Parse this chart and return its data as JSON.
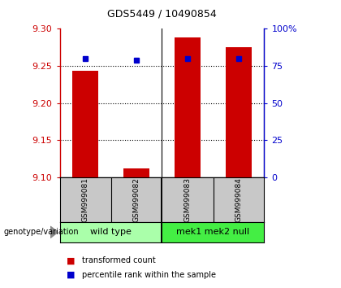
{
  "title": "GDS5449 / 10490854",
  "samples": [
    "GSM999081",
    "GSM999082",
    "GSM999083",
    "GSM999084"
  ],
  "bar_bottoms": [
    9.1,
    9.1,
    9.1,
    9.1
  ],
  "bar_tops": [
    9.243,
    9.112,
    9.288,
    9.275
  ],
  "percentile_pcts": [
    80,
    79,
    80,
    80
  ],
  "ylim_left": [
    9.1,
    9.3
  ],
  "ylim_right": [
    0,
    100
  ],
  "yticks_left": [
    9.1,
    9.15,
    9.2,
    9.25,
    9.3
  ],
  "yticks_right": [
    0,
    25,
    50,
    75,
    100
  ],
  "ytick_labels_right": [
    "0",
    "25",
    "50",
    "75",
    "100%"
  ],
  "grid_lines": [
    9.15,
    9.2,
    9.25
  ],
  "bar_color": "#cc0000",
  "dot_color": "#0000cc",
  "group_labels": [
    "wild type",
    "mek1 mek2 null"
  ],
  "group_ranges": [
    [
      0,
      2
    ],
    [
      2,
      4
    ]
  ],
  "group_colors": [
    "#aaffaa",
    "#44ee44"
  ],
  "genotype_label": "genotype/variation",
  "legend_bar_label": "transformed count",
  "legend_dot_label": "percentile rank within the sample",
  "sample_bg_color": "#c8c8c8",
  "plot_bg_color": "#ffffff",
  "left_label_color": "#cc0000",
  "right_label_color": "#0000cc",
  "bar_width": 0.5
}
